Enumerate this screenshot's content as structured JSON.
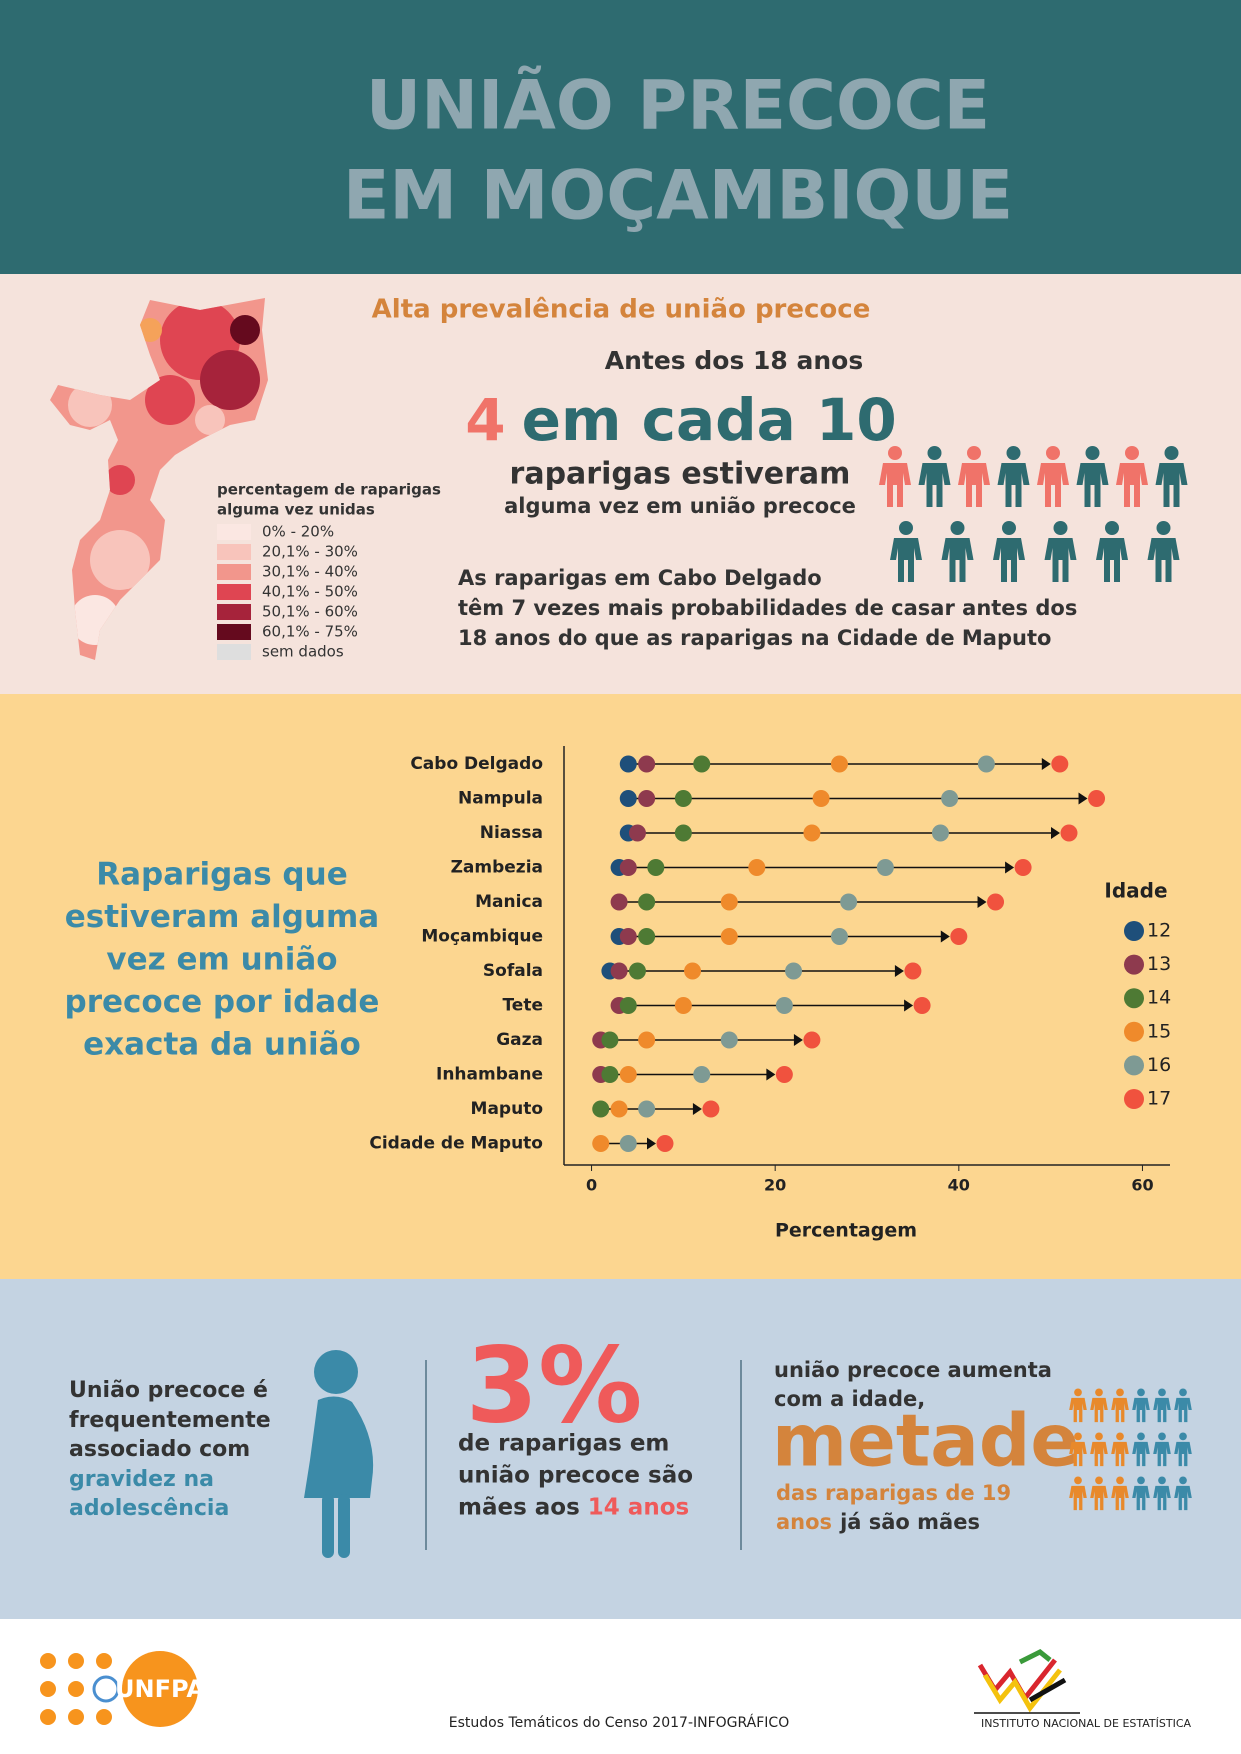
{
  "header": {
    "title_lines": [
      "UNIÃO PRECOCE",
      "EM MOÇAMBIQUE"
    ]
  },
  "prevalence": {
    "heading": "Alta prevalência de união precoce",
    "subheading": "Antes dos 18 anos",
    "ratio_number": "4",
    "ratio_text": "em cada 10",
    "line1": "raparigas estiveram",
    "line2": "alguma vez em união precoce",
    "note_lines": [
      "As raparigas em Cabo Delgado",
      "têm 7 vezes mais probabilidades de casar antes dos",
      "18 anos do que as raparigas na Cidade de Maputo"
    ]
  },
  "map_legend": {
    "title_lines": [
      "percentagem de raparigas",
      "alguma vez unidas"
    ],
    "classes": [
      {
        "label": "0% - 20%",
        "color": "#fbe7e2"
      },
      {
        "label": "20,1% - 30%",
        "color": "#f8c4bb"
      },
      {
        "label": "30,1% - 40%",
        "color": "#f2968c"
      },
      {
        "label": "40,1% - 50%",
        "color": "#df4552"
      },
      {
        "label": "50,1% - 60%",
        "color": "#a6233b"
      },
      {
        "label": "60,1% - 75%",
        "color": "#650a1e"
      },
      {
        "label": "sem dados",
        "color": "#dedede"
      }
    ]
  },
  "chart_data": {
    "type": "dot",
    "title_lines": [
      "Raparigas que",
      "estiveram alguma",
      "vez em união",
      "precoce por idade",
      "exacta da união"
    ],
    "categories": [
      "Cabo Delgado",
      "Nampula",
      "Niassa",
      "Zambezia",
      "Manica",
      "Moçambique",
      "Sofala",
      "Tete",
      "Gaza",
      "Inhambane",
      "Maputo",
      "Cidade de Maputo"
    ],
    "series": [
      {
        "name": "12",
        "color": "#1e4f7a",
        "values": [
          4,
          4,
          4,
          3,
          null,
          3,
          2,
          null,
          null,
          null,
          null,
          null
        ]
      },
      {
        "name": "13",
        "color": "#8e3a4e",
        "values": [
          6,
          6,
          5,
          4,
          3,
          4,
          3,
          3,
          1,
          1,
          null,
          null
        ]
      },
      {
        "name": "14",
        "color": "#4e7a34",
        "values": [
          12,
          10,
          10,
          7,
          6,
          6,
          5,
          4,
          2,
          2,
          1,
          null
        ]
      },
      {
        "name": "15",
        "color": "#ef8a2b",
        "values": [
          27,
          25,
          24,
          18,
          15,
          15,
          11,
          10,
          6,
          4,
          3,
          1
        ]
      },
      {
        "name": "16",
        "color": "#7e9a94",
        "values": [
          43,
          39,
          38,
          32,
          28,
          27,
          22,
          21,
          15,
          12,
          6,
          4
        ]
      },
      {
        "name": "17",
        "color": "#f0523e",
        "values": [
          51,
          55,
          52,
          47,
          44,
          40,
          35,
          36,
          24,
          21,
          13,
          8
        ]
      }
    ],
    "xlim": [
      -3,
      63
    ],
    "xticks": [
      0,
      20,
      40,
      60
    ],
    "xlabel": "Percentagem",
    "legend_title": "Idade"
  },
  "facts": {
    "pregnancy_lines": [
      "União precoce é",
      "frequentemente",
      "associado com"
    ],
    "pregnancy_highlight": [
      "gravidez na",
      "adolescência"
    ],
    "share": "3%",
    "share_lines": [
      "de raparigas em",
      "união precoce são"
    ],
    "share_last": "mães aos",
    "share_highlight": "14 anos",
    "half_lines": [
      "união precoce aumenta",
      "com a idade,"
    ],
    "half_big": "metade",
    "half_highlight": [
      "das raparigas de 19",
      "anos"
    ],
    "half_tail": "já são mães"
  },
  "footer": {
    "credit": "Estudos Temáticos do Censo 2017-INFOGRÁFICO",
    "unfpa": "UNFPA",
    "institute": "INSTITUTO NACIONAL DE ESTATÍSTICA"
  }
}
